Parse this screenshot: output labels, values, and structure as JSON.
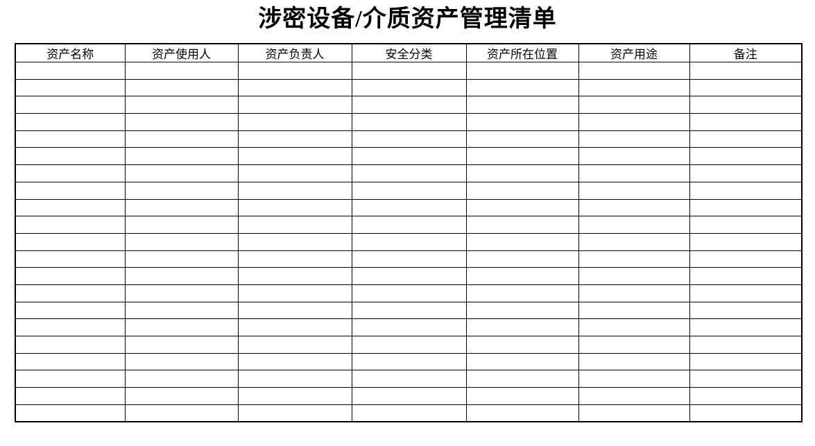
{
  "title": "涉密设备/介质资产管理清单",
  "table": {
    "columns": [
      "资产名称",
      "资产使用人",
      "资产负责人",
      "安全分类",
      "资产所在位置",
      "资产用途",
      "备注"
    ],
    "empty_row_count": 21,
    "cell_values": []
  },
  "colors": {
    "text": "#000000",
    "border": "#000000",
    "background": "#ffffff"
  }
}
